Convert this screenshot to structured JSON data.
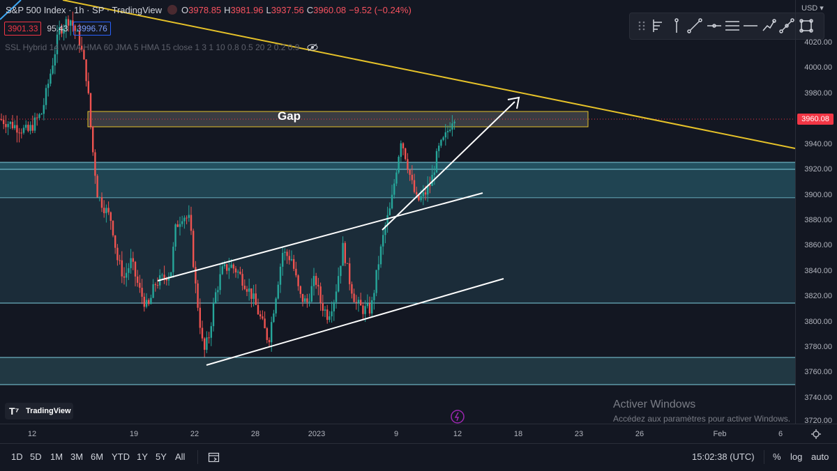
{
  "legend": {
    "symbol": "S&P 500 Index · 1h · SP  · TradingView",
    "open_label": "O",
    "open": "3978.85",
    "high_label": "H",
    "high": "3981.96",
    "low_label": "L",
    "low": "3937.56",
    "close_label": "C",
    "close": "3960.08",
    "change": "−9.52 (−0.24%)"
  },
  "boxes": {
    "bid": "3901.33",
    "spread": "95.43",
    "ask": "3996.76"
  },
  "indicator": "SSL Hybrid 14 WMA HMA 60 JMA 5 HMA 15 close 1 3 1 10 0.8 0.5 20 2 0.2 0.9",
  "annotation": {
    "gap": "Gap"
  },
  "price_axis": {
    "currency": "USD",
    "ticks": [
      "4020.00",
      "4000.00",
      "3980.00",
      "3960.08",
      "3940.00",
      "3920.00",
      "3900.00",
      "3880.00",
      "3860.00",
      "3840.00",
      "3820.00",
      "3800.00",
      "3780.00",
      "3760.00",
      "3740.00",
      "3720.00"
    ],
    "last_price": "3960.08"
  },
  "time_axis": {
    "ticks": [
      "12",
      "19",
      "22",
      "28",
      "2023",
      "9",
      "12",
      "18",
      "23",
      "26",
      "Feb",
      "6"
    ]
  },
  "ranges": [
    "1D",
    "5D",
    "1M",
    "3M",
    "6M",
    "YTD",
    "1Y",
    "5Y",
    "All"
  ],
  "clock": "15:02:38 (UTC)",
  "scale_options": {
    "percent": "%",
    "log": "log",
    "auto": "auto"
  },
  "branding": {
    "logo": "TradingView"
  },
  "watermark": {
    "title": "Activer Windows",
    "subtitle": "Accédez aux paramètres pour activer Windows."
  },
  "colors": {
    "background": "#131722",
    "up": "#26a69a",
    "down": "#ef5350",
    "gap_border": "#e6c229",
    "zone": "#2b6a7a",
    "trendline": "#e6c229"
  },
  "toolbar_icons": [
    "drag-handle-icon",
    "long-position-icon",
    "vertical-line-icon",
    "trend-line-icon",
    "horizontal-ray-icon",
    "horizontal-lines-icon",
    "horizontal-line-icon",
    "path-icon",
    "pencil-icon",
    "rectangle-icon"
  ]
}
